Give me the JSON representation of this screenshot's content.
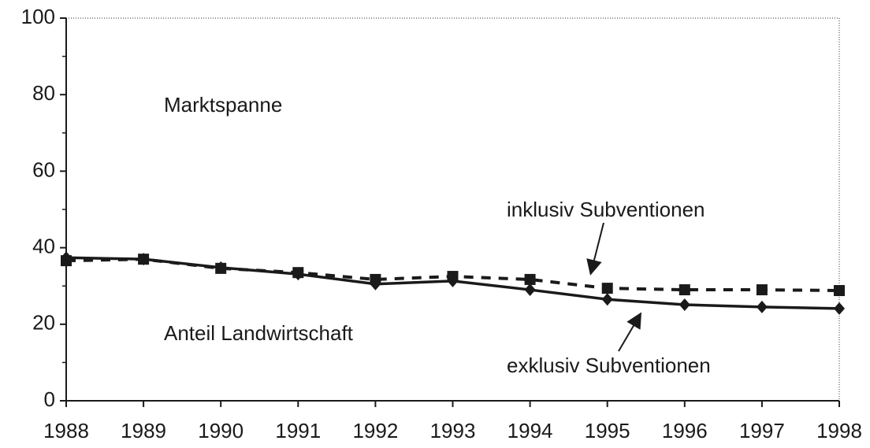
{
  "chart_data": {
    "type": "line",
    "x": [
      1988,
      1989,
      1990,
      1991,
      1992,
      1993,
      1994,
      1995,
      1996,
      1997,
      1998
    ],
    "xlim": [
      1988,
      1998
    ],
    "xticks": [
      1988,
      1989,
      1990,
      1991,
      1992,
      1993,
      1994,
      1995,
      1996,
      1997,
      1998
    ],
    "ylim": [
      0,
      100
    ],
    "yticks": [
      0,
      20,
      40,
      60,
      80,
      100
    ],
    "minor_yticks": [
      10,
      30,
      50,
      70,
      90
    ],
    "series": [
      {
        "name": "inklusiv Subventionen",
        "color": "#1a1a1a",
        "dash": true,
        "marker": "square",
        "values": [
          36.6,
          37,
          34.6,
          33.5,
          31.7,
          32.5,
          31.7,
          29.4,
          29,
          29,
          28.8
        ]
      },
      {
        "name": "exklusiv Subventionen",
        "color": "#1a1a1a",
        "dash": false,
        "marker": "diamond",
        "values": [
          37.4,
          37,
          34.8,
          33.1,
          30.5,
          31.3,
          29,
          26.5,
          25.1,
          24.5,
          24.1
        ]
      }
    ],
    "annotations": [
      "Marktspanne",
      "Anteil Landwirtschaft"
    ]
  }
}
